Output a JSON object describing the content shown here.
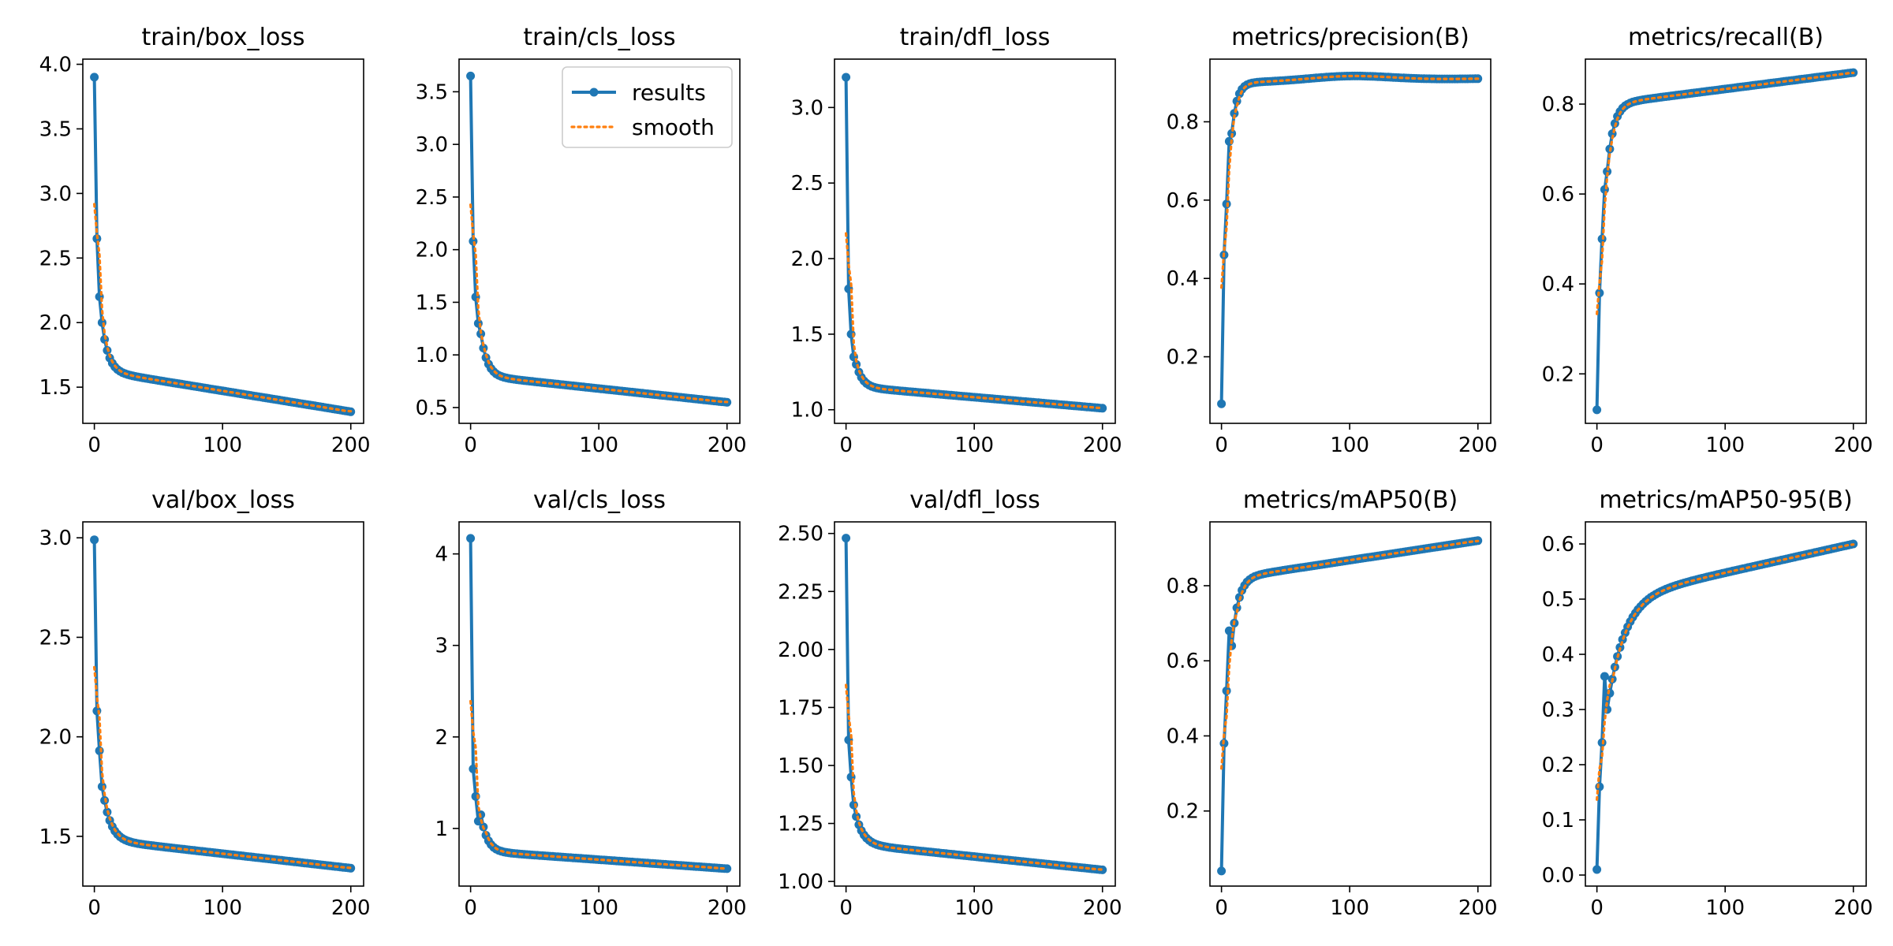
{
  "colors": {
    "results": "#1f77b4",
    "smooth": "#ff7f0e",
    "axes": "#000000",
    "legend_border": "#cccccc"
  },
  "legend": {
    "entries": [
      "results",
      "smooth"
    ],
    "location": "upper-right",
    "panel_index": 1
  },
  "chart_data": [
    {
      "type": "line",
      "title": "train/box_loss",
      "xlim": [
        -9,
        210
      ],
      "ylim": [
        1.22,
        4.04
      ],
      "xticks": [
        0,
        100,
        200
      ],
      "xtick_labels": [
        "0",
        "100",
        "200"
      ],
      "yticks": [
        1.5,
        2.0,
        2.5,
        3.0,
        3.5,
        4.0
      ],
      "ytick_labels": [
        "1.5",
        "2.0",
        "2.5",
        "3.0",
        "3.5",
        "4.0"
      ],
      "curve": {
        "start": 3.9,
        "init": [
          2.65,
          2.2,
          2.0
        ],
        "b": 0.25,
        "tau": 5,
        "e_end": 1.62,
        "end": 1.31,
        "shape": "decay"
      },
      "series": [
        {
          "name": "results"
        },
        {
          "name": "smooth"
        }
      ]
    },
    {
      "type": "line",
      "title": "train/cls_loss",
      "xlim": [
        -9,
        210
      ],
      "ylim": [
        0.35,
        3.81
      ],
      "xticks": [
        0,
        100,
        200
      ],
      "xtick_labels": [
        "0",
        "100",
        "200"
      ],
      "yticks": [
        0.5,
        1.0,
        1.5,
        2.0,
        2.5,
        3.0,
        3.5
      ],
      "ytick_labels": [
        "0.5",
        "1.0",
        "1.5",
        "2.0",
        "2.5",
        "3.0",
        "3.5"
      ],
      "curve": {
        "start": 3.65,
        "init": [
          2.08,
          1.55,
          1.3
        ],
        "b": 0.4,
        "tau": 5,
        "e_end": 0.8,
        "end": 0.55,
        "shape": "decay"
      },
      "series": [
        {
          "name": "results"
        },
        {
          "name": "smooth"
        }
      ]
    },
    {
      "type": "line",
      "title": "train/dfl_loss",
      "xlim": [
        -9,
        210
      ],
      "ylim": [
        0.91,
        3.32
      ],
      "xticks": [
        0,
        100,
        200
      ],
      "xtick_labels": [
        "0",
        "100",
        "200"
      ],
      "yticks": [
        1.0,
        1.5,
        2.0,
        2.5,
        3.0
      ],
      "ytick_labels": [
        "1.0",
        "1.5",
        "2.0",
        "2.5",
        "3.0"
      ],
      "curve": {
        "start": 3.2,
        "init": [
          1.8,
          1.5,
          1.35
        ],
        "b": 0.15,
        "tau": 5,
        "e_end": 1.15,
        "end": 1.01,
        "shape": "decay"
      },
      "series": [
        {
          "name": "results"
        },
        {
          "name": "smooth"
        }
      ]
    },
    {
      "type": "line",
      "title": "metrics/precision(B)",
      "xlim": [
        -9,
        210
      ],
      "ylim": [
        0.03,
        0.96
      ],
      "xticks": [
        0,
        100,
        200
      ],
      "xtick_labels": [
        "0",
        "100",
        "200"
      ],
      "yticks": [
        0.2,
        0.4,
        0.6,
        0.8
      ],
      "ytick_labels": [
        "0.2",
        "0.4",
        "0.6",
        "0.8"
      ],
      "curve": {
        "start": 0.08,
        "init": [
          0.46,
          0.59,
          0.75
        ],
        "b": 0.13,
        "tau": 4,
        "e_end": 0.9,
        "end": 0.91,
        "shape": "rise",
        "bump": 0.012
      },
      "series": [
        {
          "name": "results"
        },
        {
          "name": "smooth"
        }
      ]
    },
    {
      "type": "line",
      "title": "metrics/recall(B)",
      "xlim": [
        -9,
        210
      ],
      "ylim": [
        0.09,
        0.9
      ],
      "xticks": [
        0,
        100,
        200
      ],
      "xtick_labels": [
        "0",
        "100",
        "200"
      ],
      "yticks": [
        0.2,
        0.4,
        0.6,
        0.8
      ],
      "ytick_labels": [
        "0.2",
        "0.4",
        "0.6",
        "0.8"
      ],
      "curve": {
        "start": 0.12,
        "init": [
          0.38,
          0.5,
          0.61
        ],
        "b": 0.15,
        "tau": 5,
        "e_end": 0.8,
        "end": 0.87,
        "shape": "rise"
      },
      "series": [
        {
          "name": "results"
        },
        {
          "name": "smooth"
        }
      ]
    },
    {
      "type": "line",
      "title": "val/box_loss",
      "xlim": [
        -9,
        210
      ],
      "ylim": [
        1.25,
        3.08
      ],
      "xticks": [
        0,
        100,
        200
      ],
      "xtick_labels": [
        "0",
        "100",
        "200"
      ],
      "yticks": [
        1.5,
        2.0,
        2.5,
        3.0
      ],
      "ytick_labels": [
        "1.5",
        "2.0",
        "2.5",
        "3.0"
      ],
      "curve": {
        "start": 2.99,
        "init": [
          2.13,
          1.93,
          1.75
        ],
        "b": 0.2,
        "tau": 6,
        "e_end": 1.48,
        "end": 1.34,
        "shape": "decay"
      },
      "series": [
        {
          "name": "results"
        },
        {
          "name": "smooth"
        }
      ]
    },
    {
      "type": "line",
      "title": "val/cls_loss",
      "xlim": [
        -9,
        210
      ],
      "ylim": [
        0.37,
        4.35
      ],
      "xticks": [
        0,
        100,
        200
      ],
      "xtick_labels": [
        "0",
        "100",
        "200"
      ],
      "yticks": [
        1,
        2,
        3,
        4
      ],
      "ytick_labels": [
        "1",
        "2",
        "3",
        "4"
      ],
      "curve": {
        "start": 4.17,
        "init": [
          1.65,
          1.35,
          1.08
        ],
        "b": 0.4,
        "tau": 5,
        "e_end": 0.75,
        "end": 0.56,
        "shape": "decay"
      },
      "series": [
        {
          "name": "results"
        },
        {
          "name": "smooth"
        }
      ]
    },
    {
      "type": "line",
      "title": "val/dfl_loss",
      "xlim": [
        -9,
        210
      ],
      "ylim": [
        0.98,
        2.55
      ],
      "xticks": [
        0,
        100,
        200
      ],
      "xtick_labels": [
        "0",
        "100",
        "200"
      ],
      "yticks": [
        1.0,
        1.25,
        1.5,
        1.75,
        2.0,
        2.25,
        2.5
      ],
      "ytick_labels": [
        "1.00",
        "1.25",
        "1.50",
        "1.75",
        "2.00",
        "2.25",
        "2.50"
      ],
      "curve": {
        "start": 2.48,
        "init": [
          1.61,
          1.45,
          1.33
        ],
        "b": 0.12,
        "tau": 6,
        "e_end": 1.16,
        "end": 1.05,
        "shape": "decay"
      },
      "series": [
        {
          "name": "results"
        },
        {
          "name": "smooth"
        }
      ]
    },
    {
      "type": "line",
      "title": "metrics/mAP50(B)",
      "xlim": [
        -9,
        210
      ],
      "ylim": [
        0.0,
        0.97
      ],
      "xticks": [
        0,
        100,
        200
      ],
      "xtick_labels": [
        "0",
        "100",
        "200"
      ],
      "yticks": [
        0.2,
        0.4,
        0.6,
        0.8
      ],
      "ytick_labels": [
        "0.2",
        "0.4",
        "0.6",
        "0.8"
      ],
      "curve": {
        "start": 0.04,
        "init": [
          0.38,
          0.52,
          0.68
        ],
        "b": 0.18,
        "tau": 5,
        "e_end": 0.82,
        "end": 0.92,
        "shape": "rise"
      },
      "series": [
        {
          "name": "results"
        },
        {
          "name": "smooth"
        }
      ]
    },
    {
      "type": "line",
      "title": "metrics/mAP50-95(B)",
      "xlim": [
        -9,
        210
      ],
      "ylim": [
        -0.02,
        0.64
      ],
      "xticks": [
        0,
        100,
        200
      ],
      "xtick_labels": [
        "0",
        "100",
        "200"
      ],
      "yticks": [
        0.0,
        0.1,
        0.2,
        0.3,
        0.4,
        0.5,
        0.6
      ],
      "ytick_labels": [
        "0.0",
        "0.1",
        "0.2",
        "0.3",
        "0.4",
        "0.5",
        "0.6"
      ],
      "curve": {
        "start": 0.01,
        "init": [
          0.16,
          0.24,
          0.36
        ],
        "b": 0.2,
        "tau": 13,
        "e_end": 0.5,
        "end": 0.6,
        "shape": "rise"
      },
      "series": [
        {
          "name": "results"
        },
        {
          "name": "smooth"
        }
      ]
    }
  ]
}
